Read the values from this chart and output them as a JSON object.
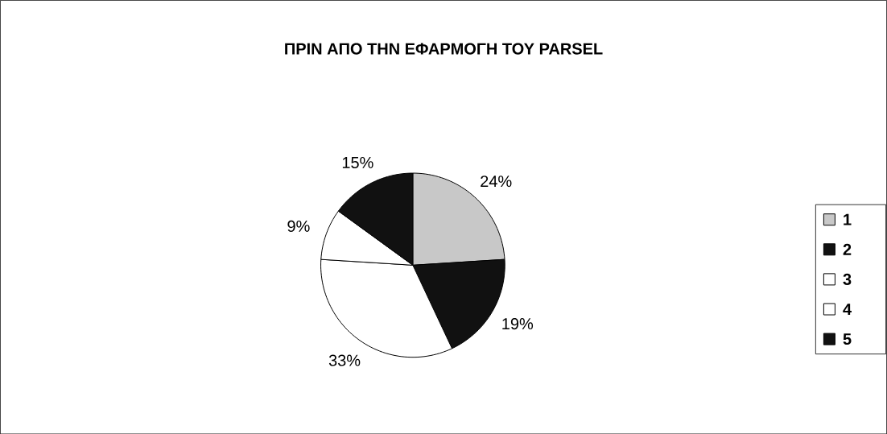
{
  "chart_data": {
    "type": "pie",
    "title": "ΠΡΙΝ ΑΠΟ ΤΗΝ ΕΦΑΡΜΟΓΗ ΤΟΥ PARSEL",
    "categories": [
      "1",
      "2",
      "3",
      "4",
      "5"
    ],
    "values": [
      24,
      19,
      33,
      9,
      15
    ],
    "value_labels": [
      "24%",
      "19%",
      "33%",
      "9%",
      "15%"
    ],
    "colors": [
      "#c8c8c8",
      "#111111",
      "#ffffff",
      "#ffffff",
      "#111111"
    ],
    "legend": "right"
  }
}
